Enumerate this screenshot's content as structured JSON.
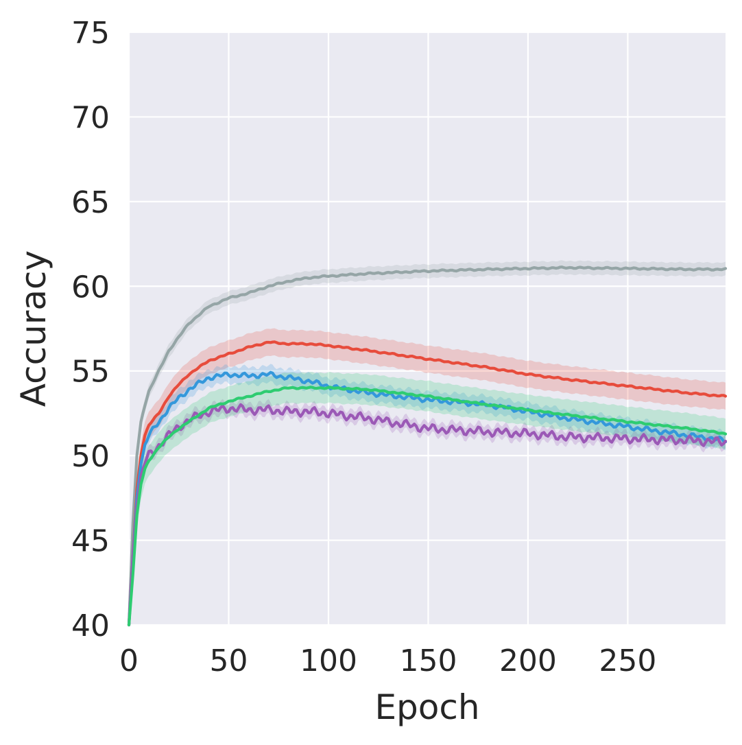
{
  "chart_data": {
    "type": "line",
    "title": "",
    "xlabel": "Epoch",
    "ylabel": "Accuracy",
    "xlim": [
      0,
      299
    ],
    "ylim": [
      40,
      75
    ],
    "xticks": [
      0,
      50,
      100,
      150,
      200,
      250
    ],
    "yticks": [
      40,
      45,
      50,
      55,
      60,
      65,
      70,
      75
    ],
    "grid": true,
    "legend": "none",
    "background": "#EAEAF2",
    "series": [
      {
        "name": "gray",
        "color": "#95A5A6",
        "band": 0.4,
        "x": [
          0,
          2,
          4,
          6,
          8,
          10,
          15,
          20,
          25,
          30,
          40,
          50,
          60,
          70,
          80,
          90,
          100,
          120,
          150,
          180,
          200,
          220,
          250,
          280,
          299
        ],
        "y": [
          40,
          46,
          50,
          52,
          53,
          53.8,
          55,
          56.2,
          57,
          57.8,
          58.8,
          59.3,
          59.6,
          60.0,
          60.3,
          60.5,
          60.6,
          60.75,
          60.9,
          61.0,
          61.05,
          61.1,
          61.05,
          61.0,
          61.0
        ]
      },
      {
        "name": "red",
        "color": "#E74C3C",
        "band": 0.8,
        "x": [
          0,
          2,
          4,
          6,
          8,
          10,
          15,
          20,
          25,
          30,
          40,
          50,
          60,
          70,
          80,
          90,
          100,
          120,
          150,
          180,
          200,
          220,
          250,
          280,
          299
        ],
        "y": [
          40,
          44,
          48,
          50,
          51.2,
          51.8,
          52.5,
          53.5,
          54.2,
          54.8,
          55.6,
          56.0,
          56.4,
          56.7,
          56.6,
          56.6,
          56.5,
          56.2,
          55.7,
          55.2,
          54.8,
          54.5,
          54.1,
          53.7,
          53.5
        ]
      },
      {
        "name": "blue",
        "color": "#3498DB",
        "band": 0.5,
        "x": [
          0,
          2,
          4,
          6,
          8,
          10,
          15,
          20,
          25,
          30,
          40,
          50,
          60,
          70,
          80,
          90,
          100,
          120,
          150,
          180,
          200,
          220,
          250,
          280,
          299
        ],
        "y": [
          40,
          44,
          47.5,
          49.5,
          50.6,
          51.2,
          52.0,
          52.8,
          53.4,
          53.9,
          54.6,
          54.8,
          54.7,
          54.8,
          54.6,
          54.4,
          54.1,
          53.7,
          53.3,
          53.0,
          52.6,
          52.2,
          51.7,
          51.2,
          50.9
        ]
      },
      {
        "name": "purple",
        "color": "#9B59B6",
        "band": 0.4,
        "x": [
          0,
          2,
          4,
          6,
          8,
          10,
          15,
          20,
          25,
          30,
          40,
          50,
          60,
          70,
          80,
          90,
          100,
          120,
          150,
          180,
          200,
          220,
          250,
          280,
          299
        ],
        "y": [
          40,
          44,
          47,
          48.8,
          49.6,
          50.0,
          50.6,
          51.2,
          51.7,
          52.1,
          52.6,
          52.8,
          52.7,
          52.7,
          52.6,
          52.6,
          52.5,
          52.2,
          51.6,
          51.4,
          51.3,
          51.1,
          51.0,
          50.9,
          50.8
        ]
      },
      {
        "name": "green",
        "color": "#2ECC71",
        "band": 0.9,
        "x": [
          0,
          2,
          4,
          6,
          8,
          10,
          15,
          20,
          25,
          30,
          40,
          50,
          60,
          70,
          80,
          90,
          100,
          120,
          150,
          180,
          200,
          220,
          250,
          280,
          299
        ],
        "y": [
          40,
          43,
          46.5,
          48.3,
          49.2,
          49.7,
          50.5,
          51.1,
          51.6,
          52.0,
          52.8,
          53.2,
          53.5,
          53.8,
          54.0,
          54.0,
          54.0,
          53.9,
          53.5,
          53.0,
          52.7,
          52.4,
          52.0,
          51.6,
          51.3
        ]
      }
    ]
  }
}
